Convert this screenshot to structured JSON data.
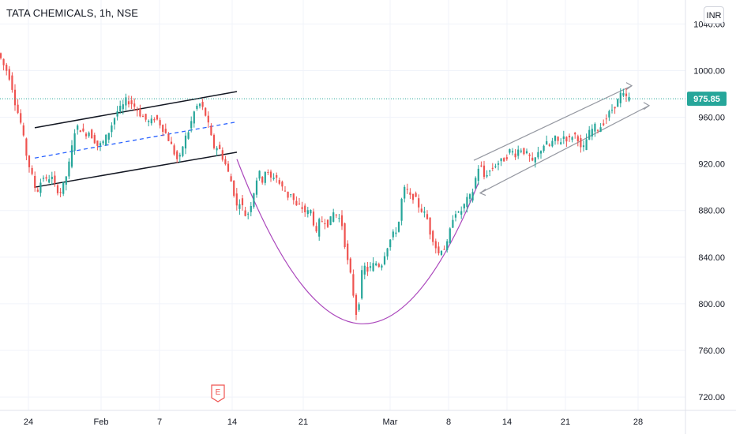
{
  "header": {
    "title": "TATA CHEMICALS, 1h, NSE",
    "currency": "INR"
  },
  "colors": {
    "up": "#26a69a",
    "down": "#ef5350",
    "grid": "#f0f3fa",
    "axis_text": "#131722",
    "last_price_bg": "#26a69a",
    "channel_lines": "#131722",
    "channel_mid": "#2962ff",
    "cup_curve": "#ab47bc",
    "rising_channel": "#9598a1"
  },
  "chart_data": {
    "type": "candlestick",
    "symbol": "TATA CHEMICALS",
    "interval": "1h",
    "exchange": "NSE",
    "currency": "INR",
    "y_ticks": [
      720,
      760,
      800,
      840,
      880,
      920,
      960,
      1000,
      1040
    ],
    "y_tick_labels": [
      "720.00",
      "760.00",
      "800.00",
      "840.00",
      "880.00",
      "920.00",
      "960.00",
      "1000.00",
      "1040.00"
    ],
    "ylim": [
      714,
      1047
    ],
    "x_tick_labels": [
      "24",
      "Feb",
      "7",
      "14",
      "21",
      "Mar",
      "8",
      "14",
      "21",
      "28"
    ],
    "last_price": 975.85,
    "last_price_label": "975.85",
    "earnings_marker": "E",
    "path": [
      [
        0,
        1015
      ],
      [
        6,
        1005
      ],
      [
        12,
        998
      ],
      [
        16,
        990
      ],
      [
        20,
        975
      ],
      [
        24,
        965
      ],
      [
        28,
        955
      ],
      [
        32,
        940
      ],
      [
        36,
        925
      ],
      [
        40,
        915
      ],
      [
        44,
        905
      ],
      [
        48,
        895
      ],
      [
        52,
        902
      ],
      [
        56,
        910
      ],
      [
        60,
        905
      ],
      [
        66,
        910
      ],
      [
        72,
        900
      ],
      [
        78,
        895
      ],
      [
        84,
        905
      ],
      [
        90,
        922
      ],
      [
        96,
        948
      ],
      [
        102,
        952
      ],
      [
        108,
        945
      ],
      [
        114,
        948
      ],
      [
        120,
        942
      ],
      [
        126,
        935
      ],
      [
        132,
        938
      ],
      [
        138,
        945
      ],
      [
        144,
        955
      ],
      [
        150,
        965
      ],
      [
        156,
        968
      ],
      [
        162,
        975
      ],
      [
        168,
        972
      ],
      [
        174,
        968
      ],
      [
        180,
        962
      ],
      [
        186,
        958
      ],
      [
        192,
        955
      ],
      [
        198,
        960
      ],
      [
        204,
        955
      ],
      [
        210,
        948
      ],
      [
        214,
        943
      ],
      [
        218,
        937
      ],
      [
        222,
        930
      ],
      [
        226,
        924
      ],
      [
        230,
        925
      ],
      [
        234,
        938
      ],
      [
        238,
        945
      ],
      [
        242,
        950
      ],
      [
        246,
        962
      ],
      [
        250,
        968
      ],
      [
        254,
        972
      ],
      [
        258,
        968
      ],
      [
        262,
        962
      ],
      [
        266,
        952
      ],
      [
        270,
        940
      ],
      [
        274,
        932
      ],
      [
        278,
        936
      ],
      [
        282,
        928
      ],
      [
        286,
        922
      ],
      [
        290,
        914
      ],
      [
        294,
        906
      ],
      [
        298,
        895
      ],
      [
        302,
        882
      ],
      [
        306,
        890
      ],
      [
        310,
        880
      ],
      [
        314,
        874
      ],
      [
        318,
        882
      ],
      [
        322,
        892
      ],
      [
        326,
        906
      ],
      [
        330,
        912
      ],
      [
        334,
        906
      ],
      [
        338,
        915
      ],
      [
        342,
        910
      ],
      [
        346,
        906
      ],
      [
        350,
        912
      ],
      [
        354,
        905
      ],
      [
        358,
        900
      ],
      [
        362,
        898
      ],
      [
        366,
        892
      ],
      [
        370,
        895
      ],
      [
        374,
        888
      ],
      [
        378,
        882
      ],
      [
        382,
        885
      ],
      [
        386,
        880
      ],
      [
        390,
        878
      ],
      [
        396,
        880
      ],
      [
        402,
        858
      ],
      [
        406,
        870
      ],
      [
        412,
        872
      ],
      [
        418,
        868
      ],
      [
        424,
        878
      ],
      [
        430,
        875
      ],
      [
        436,
        866
      ],
      [
        440,
        842
      ],
      [
        444,
        830
      ],
      [
        448,
        816
      ],
      [
        452,
        790
      ],
      [
        456,
        800
      ],
      [
        460,
        826
      ],
      [
        464,
        832
      ],
      [
        468,
        828
      ],
      [
        472,
        832
      ],
      [
        478,
        835
      ],
      [
        484,
        832
      ],
      [
        490,
        846
      ],
      [
        496,
        855
      ],
      [
        502,
        862
      ],
      [
        506,
        866
      ],
      [
        510,
        888
      ],
      [
        514,
        898
      ],
      [
        518,
        896
      ],
      [
        522,
        890
      ],
      [
        526,
        893
      ],
      [
        530,
        886
      ],
      [
        534,
        882
      ],
      [
        538,
        878
      ],
      [
        542,
        875
      ],
      [
        546,
        862
      ],
      [
        550,
        856
      ],
      [
        554,
        848
      ],
      [
        558,
        842
      ],
      [
        562,
        850
      ],
      [
        566,
        846
      ],
      [
        570,
        856
      ],
      [
        574,
        872
      ],
      [
        578,
        880
      ],
      [
        582,
        876
      ],
      [
        586,
        880
      ],
      [
        590,
        885
      ],
      [
        594,
        890
      ],
      [
        598,
        892
      ],
      [
        602,
        900
      ],
      [
        606,
        915
      ],
      [
        610,
        920
      ],
      [
        614,
        908
      ],
      [
        618,
        912
      ],
      [
        624,
        915
      ],
      [
        630,
        920
      ],
      [
        636,
        922
      ],
      [
        642,
        925
      ],
      [
        648,
        932
      ],
      [
        654,
        928
      ],
      [
        660,
        934
      ],
      [
        666,
        930
      ],
      [
        672,
        926
      ],
      [
        676,
        920
      ],
      [
        680,
        925
      ],
      [
        686,
        932
      ],
      [
        692,
        938
      ],
      [
        698,
        935
      ],
      [
        704,
        942
      ],
      [
        710,
        938
      ],
      [
        716,
        944
      ],
      [
        722,
        940
      ],
      [
        728,
        946
      ],
      [
        734,
        942
      ],
      [
        738,
        930
      ],
      [
        742,
        935
      ],
      [
        746,
        945
      ],
      [
        750,
        948
      ],
      [
        754,
        952
      ],
      [
        760,
        950
      ],
      [
        766,
        956
      ],
      [
        772,
        962
      ],
      [
        778,
        968
      ],
      [
        784,
        974
      ],
      [
        788,
        980
      ],
      [
        792,
        978
      ],
      [
        796,
        976
      ],
      [
        800,
        975.85
      ]
    ],
    "annotations": {
      "upper_channel": [
        [
          44,
          951
        ],
        [
          300,
          982
        ]
      ],
      "lower_channel": [
        [
          44,
          900
        ],
        [
          300,
          930
        ]
      ],
      "mid_channel": [
        [
          44,
          925
        ],
        [
          300,
          956
        ]
      ],
      "cup_curve": [
        [
          300,
          924
        ],
        [
          454,
          783
        ],
        [
          606,
          904
        ]
      ],
      "rising_channel_upper": [
        [
          600,
          923
        ],
        [
          800,
          987
        ]
      ],
      "rising_channel_lower": [
        [
          608,
          895
        ],
        [
          822,
          970
        ]
      ]
    },
    "x_tick_positions": [
      36,
      128,
      202,
      294,
      384,
      494,
      568,
      642,
      716,
      808
    ]
  }
}
